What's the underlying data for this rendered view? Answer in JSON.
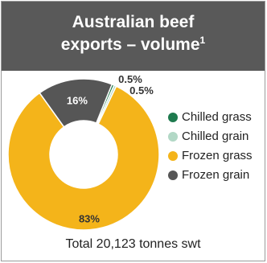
{
  "title_main": "Australian beef",
  "title_line2": "exports – volume",
  "title_footnote": "1",
  "total": "Total 20,123 tonnes swt",
  "chart_data": {
    "type": "pie",
    "donut": true,
    "categories": [
      "Chilled grass",
      "Chilled grain",
      "Frozen grass",
      "Frozen grain"
    ],
    "values": [
      0.5,
      0.5,
      83,
      16
    ],
    "labels": [
      "0.5%",
      "0.5%",
      "83%",
      "16%"
    ],
    "colors": [
      "#1e7a4e",
      "#b2d8c6",
      "#f4b41a",
      "#565656"
    ],
    "legend_position": "right"
  }
}
